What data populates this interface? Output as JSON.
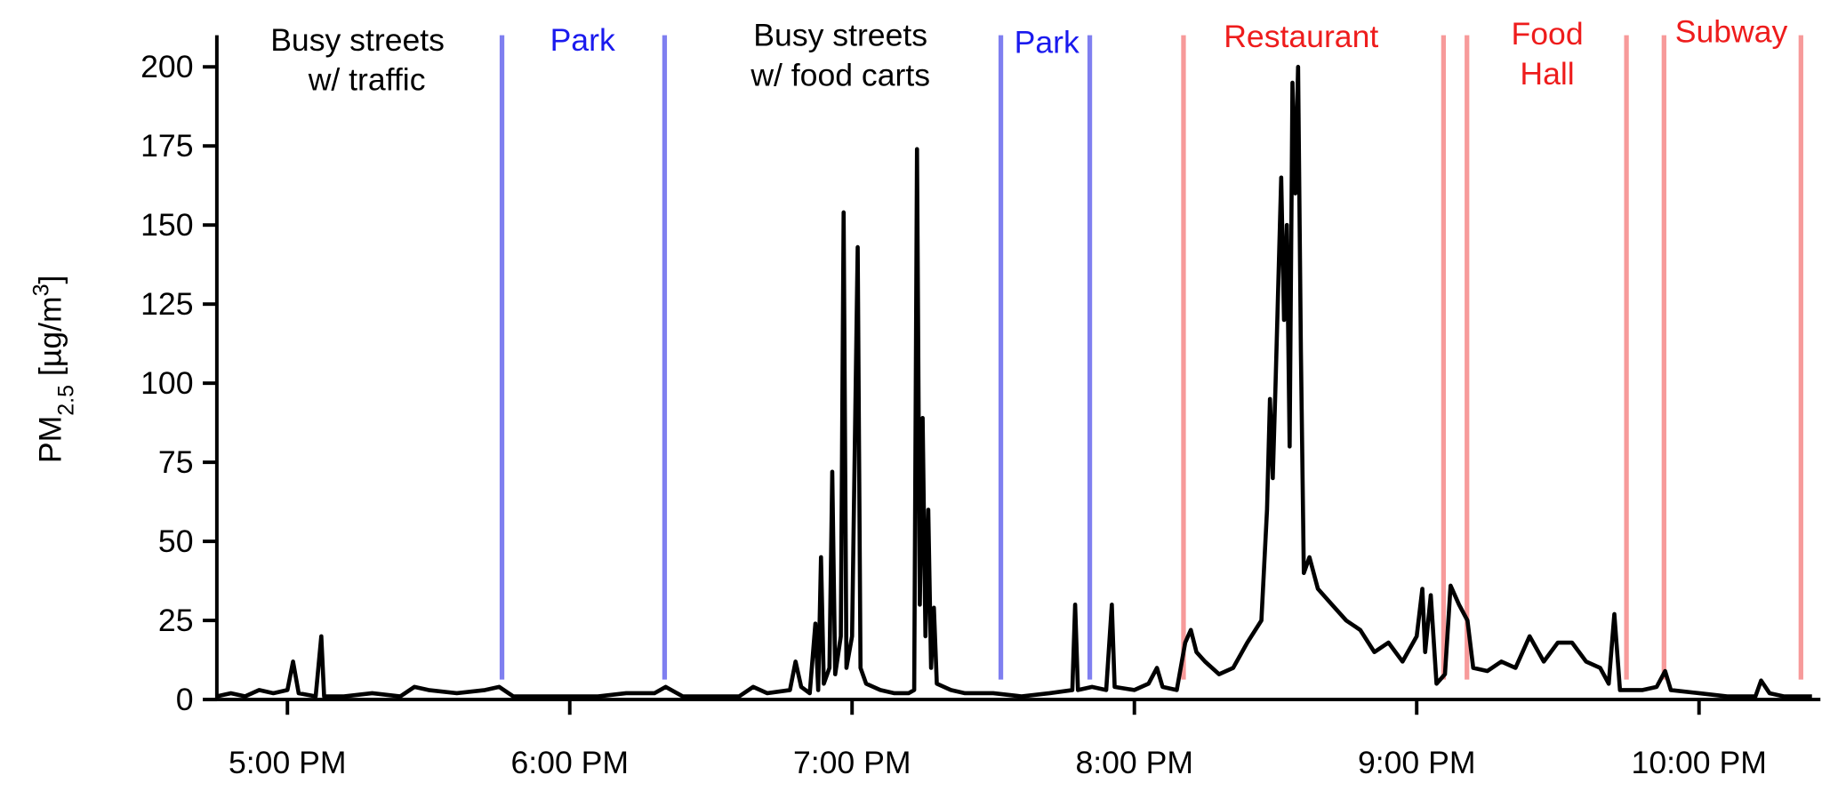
{
  "chart_data": {
    "type": "line",
    "ylabel": {
      "main": "PM",
      "sub": "2.5",
      "mid": " [µg/m",
      "sup": "3",
      "end": "]"
    },
    "xlim": [
      16.75,
      22.43
    ],
    "ylim": [
      0,
      210
    ],
    "xticks": [
      {
        "value": 17,
        "label": "5:00 PM"
      },
      {
        "value": 18,
        "label": "6:00 PM"
      },
      {
        "value": 19,
        "label": "7:00 PM"
      },
      {
        "value": 20,
        "label": "8:00 PM"
      },
      {
        "value": 21,
        "label": "9:00 PM"
      },
      {
        "value": 22,
        "label": "10:00 PM"
      }
    ],
    "yticks": [
      0,
      25,
      50,
      75,
      100,
      125,
      150,
      175,
      200
    ],
    "vlines": [
      {
        "x": 17.76,
        "color": "#7f7ff0"
      },
      {
        "x": 18.336,
        "color": "#7f7ff0"
      },
      {
        "x": 19.527,
        "color": "#7f7ff0"
      },
      {
        "x": 19.842,
        "color": "#7f7ff0"
      },
      {
        "x": 20.174,
        "color": "#f79a9a"
      },
      {
        "x": 21.095,
        "color": "#f79a9a"
      },
      {
        "x": 21.178,
        "color": "#f79a9a"
      },
      {
        "x": 21.743,
        "color": "#f79a9a"
      },
      {
        "x": 21.876,
        "color": "#f79a9a"
      },
      {
        "x": 22.361,
        "color": "#f79a9a"
      }
    ],
    "annotations": [
      {
        "lines": [
          "Busy streets",
          "w/ traffic"
        ],
        "color": "#000000"
      },
      {
        "lines": [
          "Park"
        ],
        "color": "#1a1aee"
      },
      {
        "lines": [
          "Busy streets",
          "w/ food carts"
        ],
        "color": "#000000"
      },
      {
        "lines": [
          "Park"
        ],
        "color": "#1a1aee"
      },
      {
        "lines": [
          "Restaurant"
        ],
        "color": "#ee1c1c"
      },
      {
        "lines": [
          "Food",
          "Hall"
        ],
        "color": "#ee1c1c"
      },
      {
        "lines": [
          "Subway"
        ],
        "color": "#ee1c1c"
      }
    ],
    "series": [
      {
        "color": "#000000",
        "x": [
          16.75,
          16.8,
          16.85,
          16.9,
          16.95,
          17.0,
          17.02,
          17.04,
          17.1,
          17.12,
          17.13,
          17.2,
          17.3,
          17.4,
          17.45,
          17.5,
          17.6,
          17.7,
          17.75,
          17.8,
          17.9,
          18.0,
          18.1,
          18.2,
          18.3,
          18.34,
          18.4,
          18.5,
          18.6,
          18.65,
          18.7,
          18.78,
          18.8,
          18.82,
          18.85,
          18.87,
          18.88,
          18.89,
          18.9,
          18.92,
          18.93,
          18.94,
          18.96,
          18.97,
          18.98,
          19.0,
          19.02,
          19.03,
          19.05,
          19.1,
          19.15,
          19.2,
          19.22,
          19.23,
          19.24,
          19.25,
          19.26,
          19.27,
          19.28,
          19.29,
          19.3,
          19.35,
          19.4,
          19.5,
          19.6,
          19.7,
          19.78,
          19.79,
          19.8,
          19.85,
          19.9,
          19.92,
          19.93,
          20.0,
          20.05,
          20.08,
          20.1,
          20.15,
          20.18,
          20.2,
          20.22,
          20.25,
          20.3,
          20.35,
          20.4,
          20.45,
          20.47,
          20.48,
          20.49,
          20.5,
          20.52,
          20.53,
          20.54,
          20.55,
          20.56,
          20.57,
          20.58,
          20.59,
          20.6,
          20.62,
          20.65,
          20.7,
          20.75,
          20.8,
          20.85,
          20.9,
          20.95,
          21.0,
          21.02,
          21.03,
          21.05,
          21.07,
          21.1,
          21.12,
          21.15,
          21.18,
          21.2,
          21.25,
          21.3,
          21.35,
          21.4,
          21.45,
          21.5,
          21.55,
          21.6,
          21.65,
          21.68,
          21.7,
          21.72,
          21.8,
          21.85,
          21.88,
          21.9,
          22.0,
          22.1,
          22.2,
          22.22,
          22.25,
          22.3,
          22.4
        ],
        "values": [
          1,
          2,
          1,
          3,
          2,
          3,
          12,
          2,
          1,
          20,
          1,
          1,
          2,
          1,
          4,
          3,
          2,
          3,
          4,
          1,
          1,
          1,
          1,
          2,
          2,
          4,
          1,
          1,
          1,
          4,
          2,
          3,
          12,
          4,
          2,
          24,
          3,
          45,
          5,
          10,
          72,
          8,
          20,
          154,
          10,
          20,
          143,
          10,
          5,
          3,
          2,
          2,
          3,
          174,
          30,
          89,
          20,
          60,
          10,
          29,
          5,
          3,
          2,
          2,
          1,
          2,
          3,
          30,
          3,
          4,
          3,
          30,
          4,
          3,
          5,
          10,
          4,
          3,
          18,
          22,
          15,
          12,
          8,
          10,
          18,
          25,
          60,
          95,
          70,
          100,
          165,
          120,
          150,
          80,
          195,
          160,
          200,
          110,
          40,
          45,
          35,
          30,
          25,
          22,
          15,
          18,
          12,
          20,
          35,
          15,
          33,
          5,
          8,
          36,
          30,
          25,
          10,
          9,
          12,
          10,
          20,
          12,
          18,
          18,
          12,
          10,
          5,
          27,
          3,
          3,
          4,
          9,
          3,
          2,
          1,
          1,
          6,
          2,
          1,
          1
        ]
      }
    ]
  }
}
